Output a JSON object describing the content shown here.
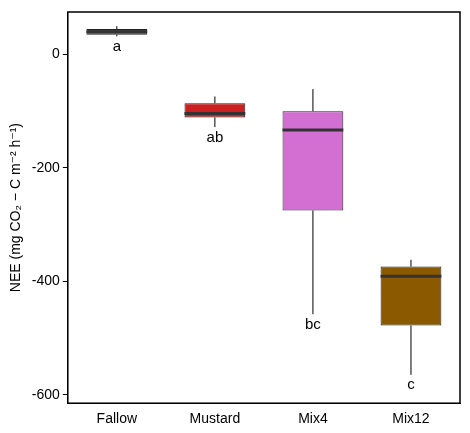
{
  "chart_data": {
    "type": "boxplot",
    "y_label": "NEE (mg CO₂ − C m⁻² h⁻¹)",
    "categories": [
      "Fallow",
      "Mustard",
      "Mix4",
      "Mix12"
    ],
    "stats": {
      "min": [
        32,
        -128,
        -458,
        -565
      ],
      "q1": [
        35,
        -111,
        -275,
        -478
      ],
      "median": [
        40,
        -104,
        -133,
        -391
      ],
      "q3": [
        45,
        -86,
        -100,
        -374
      ],
      "max": [
        50,
        -74,
        -61,
        -362
      ]
    },
    "annotations": [
      "a",
      "ab",
      "bc",
      "c"
    ],
    "colors": [
      "#4d4d4d",
      "#cc1f1f",
      "#d36fd3",
      "#8b5a00"
    ],
    "ylim": [
      -615,
      75
    ],
    "yticks": [
      -600,
      -400,
      -200,
      0
    ],
    "grid": false
  }
}
